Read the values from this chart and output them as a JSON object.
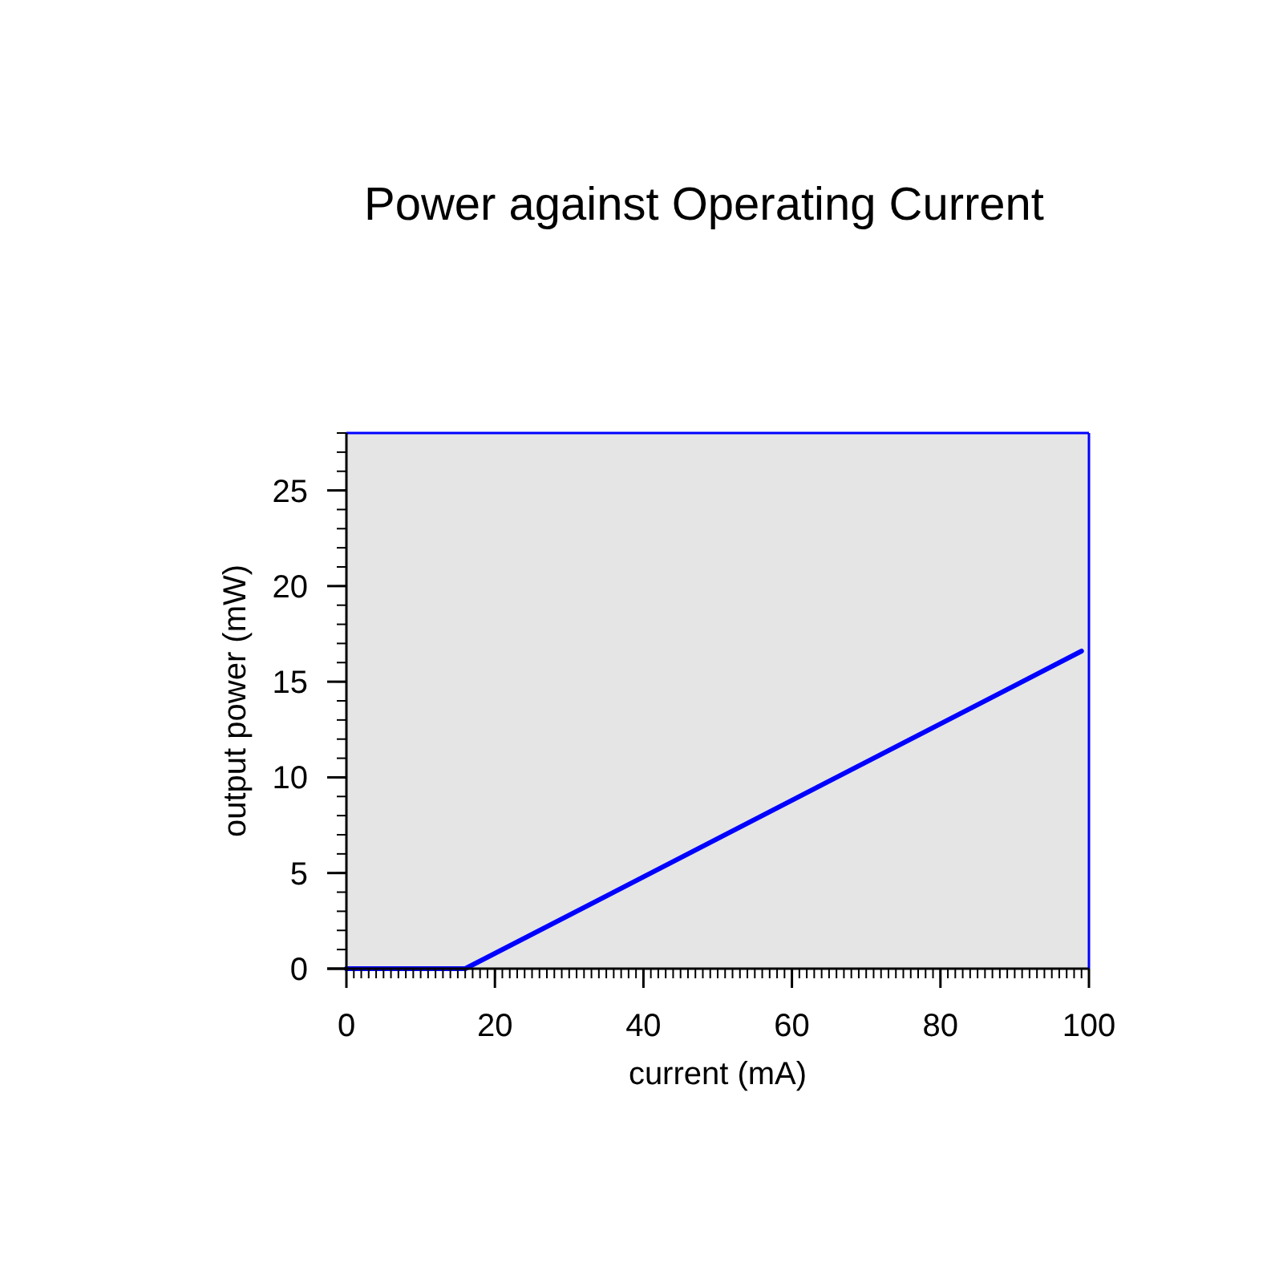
{
  "chart_data": {
    "type": "line",
    "title": "Power against Operating Current",
    "xlabel": "current (mA)",
    "ylabel": "output power (mW)",
    "x": [
      0,
      16,
      99
    ],
    "series": [
      {
        "color": "#0000ff",
        "values": [
          0,
          0,
          16.6
        ]
      }
    ],
    "xlim": [
      0,
      100
    ],
    "ylim": [
      0,
      28
    ],
    "xticks": [
      0,
      20,
      40,
      60,
      80,
      100
    ],
    "yticks": [
      0,
      5,
      10,
      15,
      20,
      25
    ],
    "grid": false
  }
}
